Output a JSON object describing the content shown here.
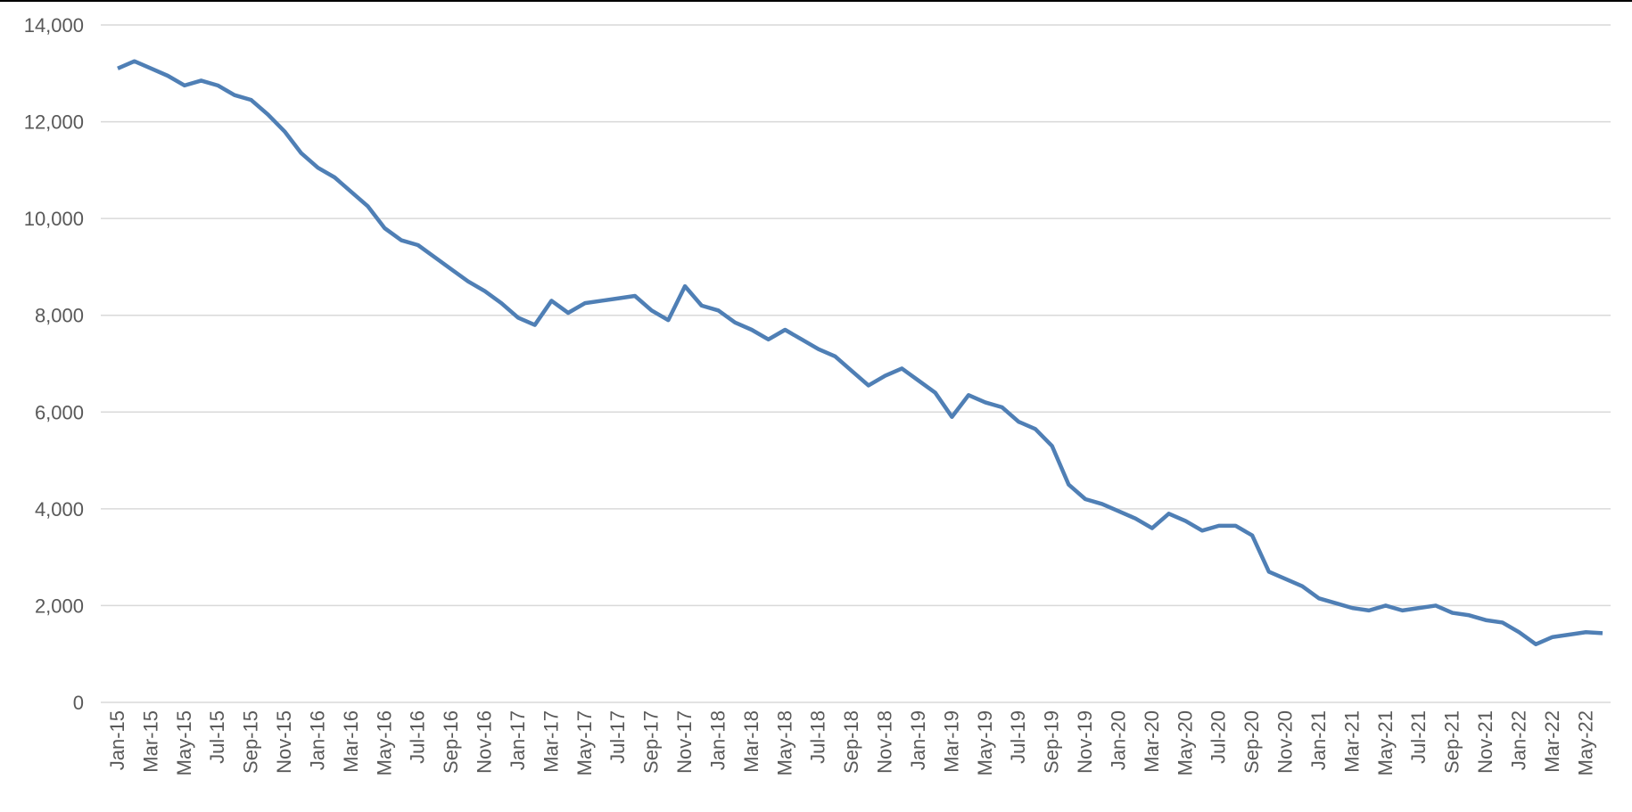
{
  "chart_data": {
    "type": "line",
    "color": "#4f7fb5",
    "grid": true,
    "categories": [
      "Jan-15",
      null,
      "Mar-15",
      null,
      "May-15",
      null,
      "Jul-15",
      null,
      "Sep-15",
      null,
      "Nov-15",
      null,
      "Jan-16",
      null,
      "Mar-16",
      null,
      "May-16",
      null,
      "Jul-16",
      null,
      "Sep-16",
      null,
      "Nov-16",
      null,
      "Jan-17",
      null,
      "Mar-17",
      null,
      "May-17",
      null,
      "Jul-17",
      null,
      "Sep-17",
      null,
      "Nov-17",
      null,
      "Jan-18",
      null,
      "Mar-18",
      null,
      "May-18",
      null,
      "Jul-18",
      null,
      "Sep-18",
      null,
      "Nov-18",
      null,
      "Jan-19",
      null,
      "Mar-19",
      null,
      "May-19",
      null,
      "Jul-19",
      null,
      "Sep-19",
      null,
      "Nov-19",
      null,
      "Jan-20",
      null,
      "Mar-20",
      null,
      "May-20",
      null,
      "Jul-20",
      null,
      "Sep-20",
      null,
      "Nov-20",
      null,
      "Jan-21",
      null,
      "Mar-21",
      null,
      "May-21",
      null,
      "Jul-21",
      null,
      "Sep-21",
      null,
      "Nov-21",
      null,
      "Jan-22",
      null,
      "Mar-22",
      null,
      "May-22",
      null
    ],
    "values": [
      13100,
      13250,
      13100,
      12950,
      12750,
      12850,
      12750,
      12550,
      12450,
      12150,
      11800,
      11350,
      11050,
      10850,
      10550,
      10250,
      9800,
      9550,
      9450,
      9200,
      8950,
      8700,
      8500,
      8250,
      7950,
      7800,
      8300,
      8050,
      8250,
      8300,
      8350,
      8400,
      8100,
      7900,
      8600,
      8200,
      8100,
      7850,
      7700,
      7500,
      7700,
      7500,
      7300,
      7150,
      6850,
      6550,
      6750,
      6900,
      6650,
      6400,
      5900,
      6350,
      6200,
      6100,
      5800,
      5650,
      5300,
      4500,
      4200,
      4100,
      3950,
      3800,
      3600,
      3900,
      3750,
      3550,
      3650,
      3650,
      3450,
      2700,
      2550,
      2400,
      2150,
      2050,
      1950,
      1900,
      2000,
      1900,
      1950,
      2000,
      1850,
      1800,
      1700,
      1650,
      1450,
      1200,
      1350,
      1400,
      1450,
      1430
    ],
    "ylim": [
      0,
      14000
    ],
    "yticks": [
      0,
      {
        "value": 2000,
        "label": "2,000"
      },
      {
        "value": 4000,
        "label": "4,000"
      },
      {
        "value": 6000,
        "label": "6,000"
      },
      {
        "value": 8000,
        "label": "8,000"
      },
      {
        "value": 10000,
        "label": "10,000"
      },
      {
        "value": 12000,
        "label": "12,000"
      },
      {
        "value": 14000,
        "label": "14,000"
      }
    ]
  }
}
